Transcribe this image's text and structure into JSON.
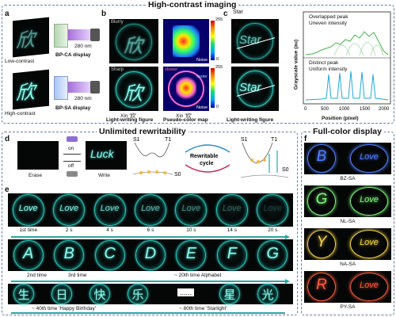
{
  "section_high_contrast": "High-contrast imaging",
  "section_rewrite": "Unlimited rewritability",
  "section_fullcolor": "Full-color display",
  "panel_a": {
    "letter": "a",
    "low_label": "Low-contrast",
    "high_label": "High-contrast",
    "wavelength_top": "280 nm",
    "wavelength_bottom": "280 nm",
    "display_top": "BP-CA display",
    "display_bottom": "BP-SA display"
  },
  "panel_b": {
    "letter": "b",
    "blurry": "Blurry",
    "sharp": "Sharp",
    "scale_max_top": "255",
    "scale_min_top": "0",
    "scale_max_bottom": "255",
    "scale_min_bottom": "0",
    "noise_top": "Noise",
    "noise_bottom": "Noise",
    "slower": "slower",
    "faster": "faster",
    "xin_left": "Xin '欣'",
    "xin_right": "Xin '欣'",
    "cap_left": "Light-writing figure",
    "cap_right": "Pseudo-color map"
  },
  "panel_c": {
    "letter": "c",
    "word_top": "Star",
    "word_bottom": "Star",
    "star_label": "Star",
    "cap": "Light-writing figure",
    "legend_top_1": "Overlapped peak",
    "legend_top_2": "Uneven intensity",
    "legend_bottom_1": "Distinct peak",
    "legend_bottom_2": "Uniform intensity",
    "ylabel": "Grayscale value (au)",
    "xlabel": "Position (pixel)",
    "xticks": [
      "0",
      "500",
      "1000",
      "1500",
      "2000"
    ]
  },
  "panel_d": {
    "letter": "d",
    "erase": "Erase",
    "write": "Write",
    "on": "on",
    "off": "off",
    "word": "Luck",
    "s1_left": "S1",
    "t1_left": "T1",
    "s0_left": "S0",
    "cycle_1": "Rewritable",
    "cycle_2": "cycle",
    "s1_right": "S1",
    "t1_right": "T1",
    "s0_right": "S0"
  },
  "panel_e": {
    "letter": "e",
    "row1_glyphs": [
      "Love",
      "Love",
      "Love",
      "Love",
      "Love",
      "Love",
      "Love"
    ],
    "row1_labels": [
      "1st time",
      "2 s",
      "4 s",
      "6 s",
      "10 s",
      "14 s",
      "20 s"
    ],
    "row2_glyphs": [
      "A",
      "B",
      "C",
      "D",
      "E",
      "F",
      "G"
    ],
    "row2_label_a": "2nd time",
    "row2_label_b": "3rd time",
    "row2_label_c": "~ 20th time Alphabet",
    "row3_glyphs": [
      "生",
      "日",
      "快",
      "乐",
      "星",
      "光"
    ],
    "row3_dots": "......",
    "row3_label_a": "~ 40th time 'Happy Birthday'",
    "row3_label_b": "~ 80th time 'Starlight'"
  },
  "panel_f": {
    "letter": "f",
    "rows": [
      {
        "left": "B",
        "right": "Love",
        "label": "BZ-SA",
        "color": "#4f7fff"
      },
      {
        "left": "G",
        "right": "Love",
        "label": "NL-SA",
        "color": "#7cf57a"
      },
      {
        "left": "Y",
        "right": "Love",
        "label": "NA-SA",
        "color": "#f5d24a"
      },
      {
        "left": "R",
        "right": "Love",
        "label": "PY-SA",
        "color": "#ff5a3a"
      }
    ]
  },
  "colors": {
    "teal": "#2fc9bd",
    "accent_line": "#2aa6a3",
    "plot_green": "#4caf50",
    "plot_blue": "#1fa9d6"
  }
}
